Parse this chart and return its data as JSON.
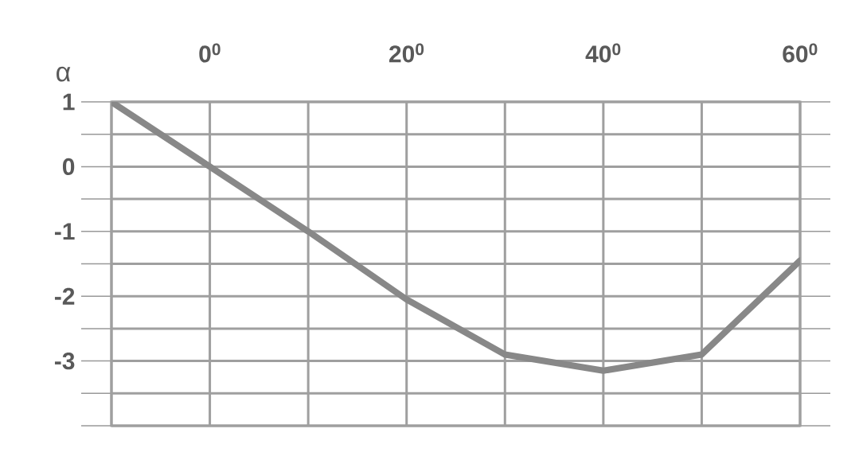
{
  "chart_data": {
    "type": "line",
    "xlabel": "α",
    "categories": [
      null,
      "0$^{0}$",
      null,
      "20$^{0}$",
      null,
      "40$^{0}$",
      null,
      "60$^{0}$"
    ],
    "values": [
      1,
      0,
      -1,
      -2.05,
      -2.9,
      -3.15,
      -2.9,
      -1.45
    ],
    "color": "#888888",
    "marker": "none",
    "line_style": "solid",
    "ylim": [
      -4,
      1
    ],
    "yticks": [
      1,
      {
        "value": 0.5,
        "label": null
      },
      0,
      {
        "value": -0.5,
        "label": null
      },
      -1,
      {
        "value": -1.5,
        "label": null
      },
      -2,
      {
        "value": -2.5,
        "label": null
      },
      -3,
      {
        "value": -3.5,
        "label": null
      },
      {
        "value": -4,
        "label": null
      }
    ],
    "grid": true
  }
}
